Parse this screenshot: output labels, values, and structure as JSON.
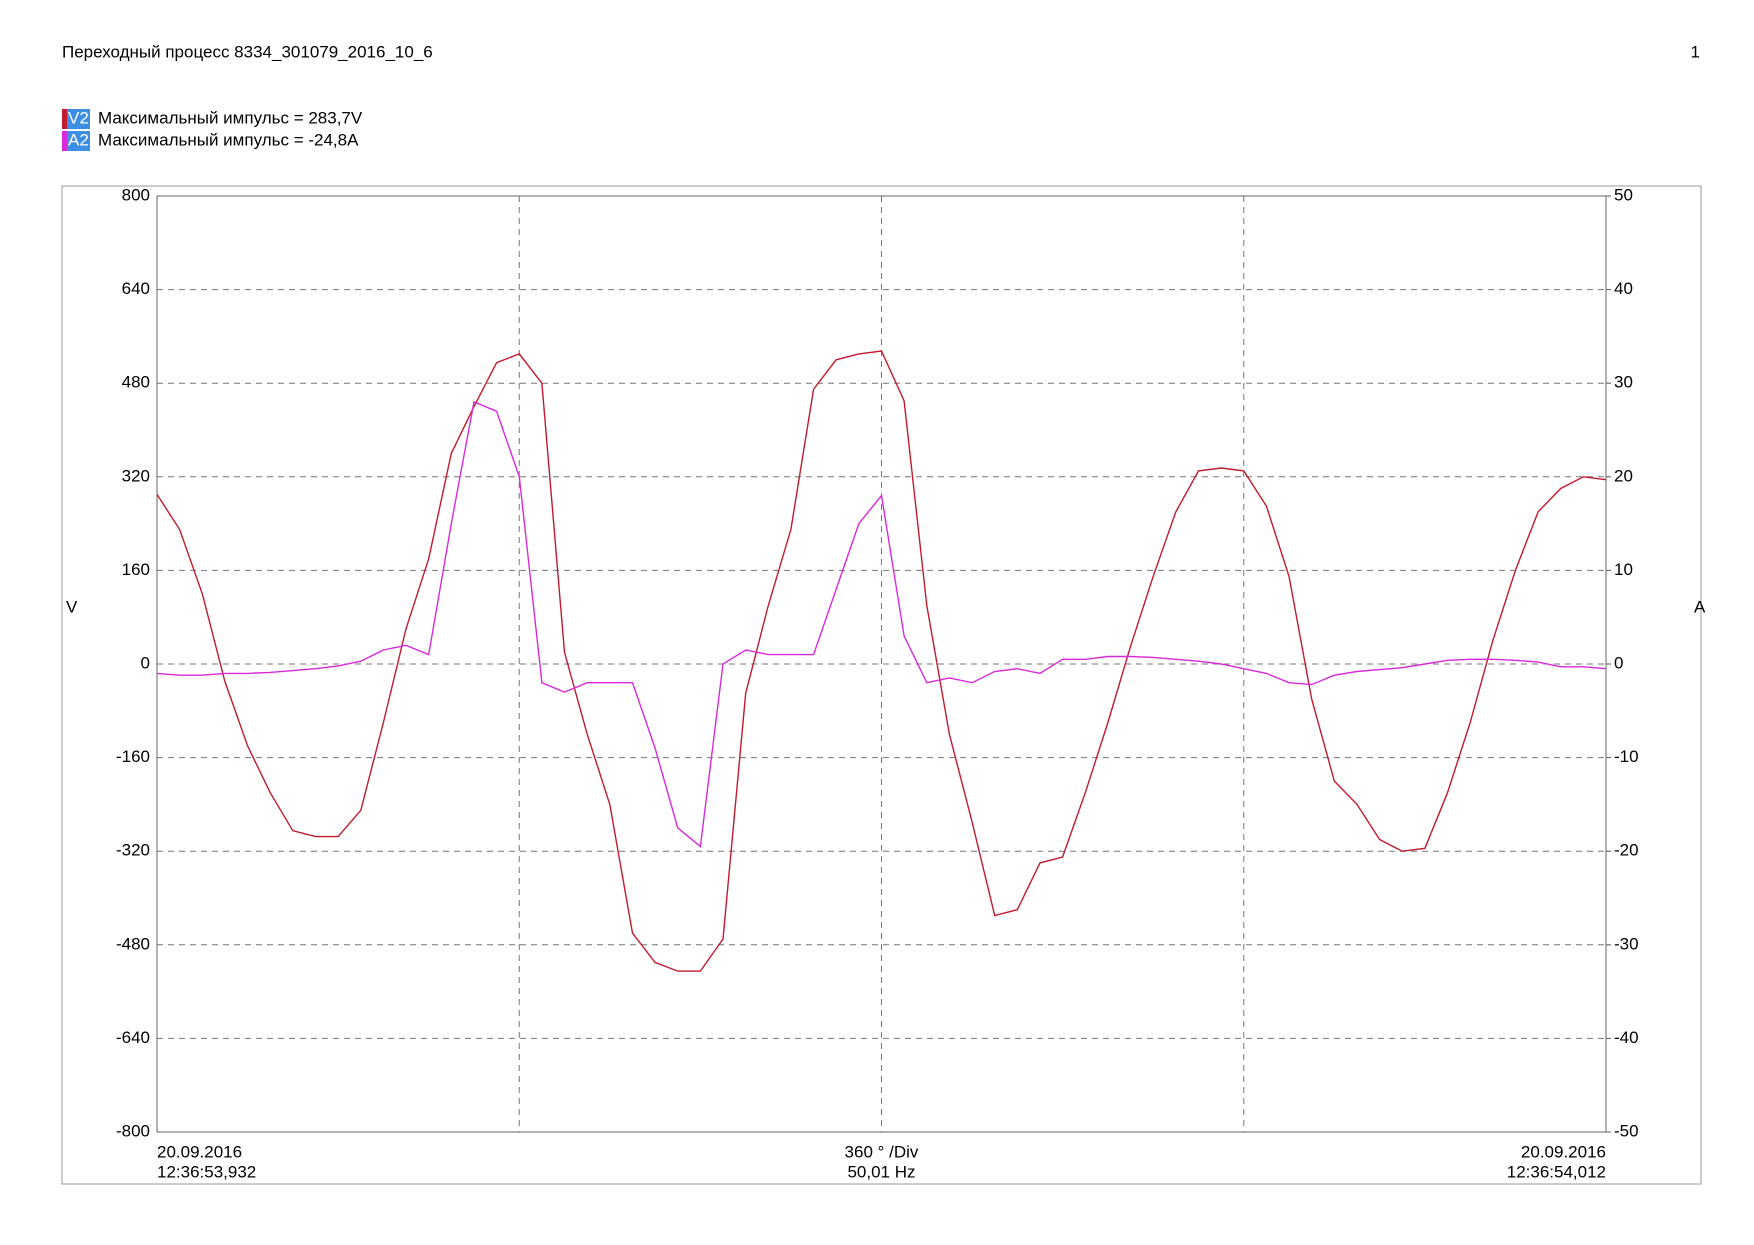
{
  "chart_data": {
    "type": "line",
    "title": "Переходный процесс 8334_301079_2016_10_6",
    "page": "1",
    "ylabel": "V",
    "y2label": "A",
    "ylim": [
      -800,
      800
    ],
    "yticks": [
      -800,
      -640,
      -480,
      -320,
      -160,
      0,
      160,
      320,
      480,
      640,
      800
    ],
    "y2lim": [
      -50,
      50
    ],
    "y2ticks": [
      -50,
      -40,
      -30,
      -20,
      -10,
      0,
      10,
      20,
      30,
      40,
      50
    ],
    "grid": true,
    "x_start_label": [
      "20.09.2016",
      "12:36:53,932"
    ],
    "x_center_label": [
      "360 ° /Div",
      "50,01 Hz"
    ],
    "x_end_label": [
      "20.09.2016",
      "12:36:54,012"
    ],
    "series": [
      {
        "name": "V2",
        "label": "Максимальный импульс = 283,7V",
        "color": "#c21a2e",
        "axis": "y",
        "values": [
          290,
          230,
          120,
          -30,
          -140,
          -220,
          -285,
          -295,
          -295,
          -250,
          -100,
          60,
          180,
          360,
          440,
          515,
          530,
          480,
          20,
          -120,
          -240,
          -460,
          -510,
          -525,
          -525,
          -470,
          -50,
          100,
          230,
          470,
          520,
          530,
          535,
          450,
          100,
          -120,
          -270,
          -430,
          -420,
          -340,
          -330,
          -220,
          -100,
          30,
          150,
          260,
          330,
          335,
          330,
          270,
          150,
          -60,
          -200,
          -240,
          -300,
          -320,
          -315,
          -220,
          -100,
          40,
          160,
          260,
          300,
          320,
          315
        ]
      },
      {
        "name": "A2",
        "label": "Максимальный импульс = -24,8A",
        "color": "#d92ad9",
        "axis": "y2",
        "values": [
          -1,
          -1.2,
          -1.2,
          -1,
          -1,
          -0.9,
          -0.7,
          -0.5,
          -0.2,
          0.3,
          1.5,
          2,
          1,
          15,
          28,
          27,
          20,
          -2,
          -3,
          -2,
          -2,
          -2,
          -9,
          -17.5,
          -19.5,
          0,
          1.5,
          1,
          1,
          1,
          8,
          15,
          18,
          3,
          -2,
          -1.5,
          -2,
          -0.8,
          -0.5,
          -1,
          0.5,
          0.5,
          0.8,
          0.8,
          0.7,
          0.5,
          0.3,
          0,
          -0.5,
          -1,
          -2,
          -2.2,
          -1.2,
          -0.8,
          -0.6,
          -0.4,
          0,
          0.4,
          0.5,
          0.5,
          0.4,
          0.2,
          -0.3,
          -0.3,
          -0.5
        ]
      }
    ]
  }
}
